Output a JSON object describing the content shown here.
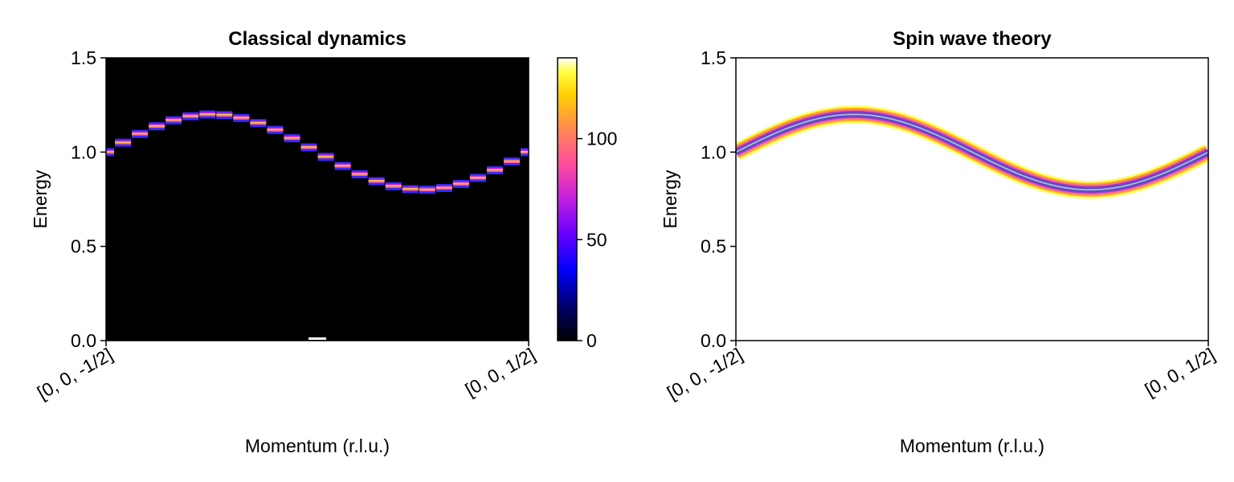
{
  "chart_data": [
    {
      "type": "heatmap",
      "title": "Classical dynamics",
      "xlabel": "Momentum (r.l.u.)",
      "ylabel": "Energy",
      "x_tick_labels": [
        "[0, 0, -1/2]",
        "[0, 0, 1/2]"
      ],
      "y_ticks": [
        0.0,
        0.5,
        1.0,
        1.5
      ],
      "y_tick_labels": [
        "0.0",
        "0.5",
        "1.0",
        "1.5"
      ],
      "ylim": [
        0,
        1.5
      ],
      "xlim": [
        0,
        1
      ],
      "background": "#000000",
      "colormap": "gnuplot2",
      "colorbar": {
        "ticks": [
          0,
          50,
          100
        ],
        "tick_labels": [
          "0",
          "50",
          "100"
        ],
        "range": [
          0,
          140
        ]
      },
      "dispersion": {
        "center_energy": 1.0,
        "amplitude": 0.2
      },
      "q_points": [
        0.0,
        0.04,
        0.08,
        0.12,
        0.16,
        0.2,
        0.24,
        0.28,
        0.32,
        0.36,
        0.4,
        0.44,
        0.48,
        0.52,
        0.56,
        0.6,
        0.64,
        0.68,
        0.72,
        0.76,
        0.8,
        0.84,
        0.88,
        0.92,
        0.96,
        1.0
      ],
      "elastic_peak": {
        "q": 0.5,
        "energy": 0.0
      }
    },
    {
      "type": "heatmap",
      "title": "Spin wave theory",
      "xlabel": "Momentum (r.l.u.)",
      "ylabel": "Energy",
      "x_tick_labels": [
        "[0, 0, -1/2]",
        "[0, 0, 1/2]"
      ],
      "y_ticks": [
        0.0,
        0.5,
        1.0,
        1.5
      ],
      "y_tick_labels": [
        "0.0",
        "0.5",
        "1.0",
        "1.5"
      ],
      "ylim": [
        0,
        1.5
      ],
      "xlim": [
        0,
        1
      ],
      "background": "#ffffff",
      "dispersion": {
        "center_energy": 1.0,
        "amplitude": 0.2
      },
      "band_colors": [
        "#ffff55",
        "#ffb020",
        "#ff6a8a",
        "#9a3ad0",
        "#4a4ab8",
        "#b0b0e0"
      ]
    }
  ]
}
